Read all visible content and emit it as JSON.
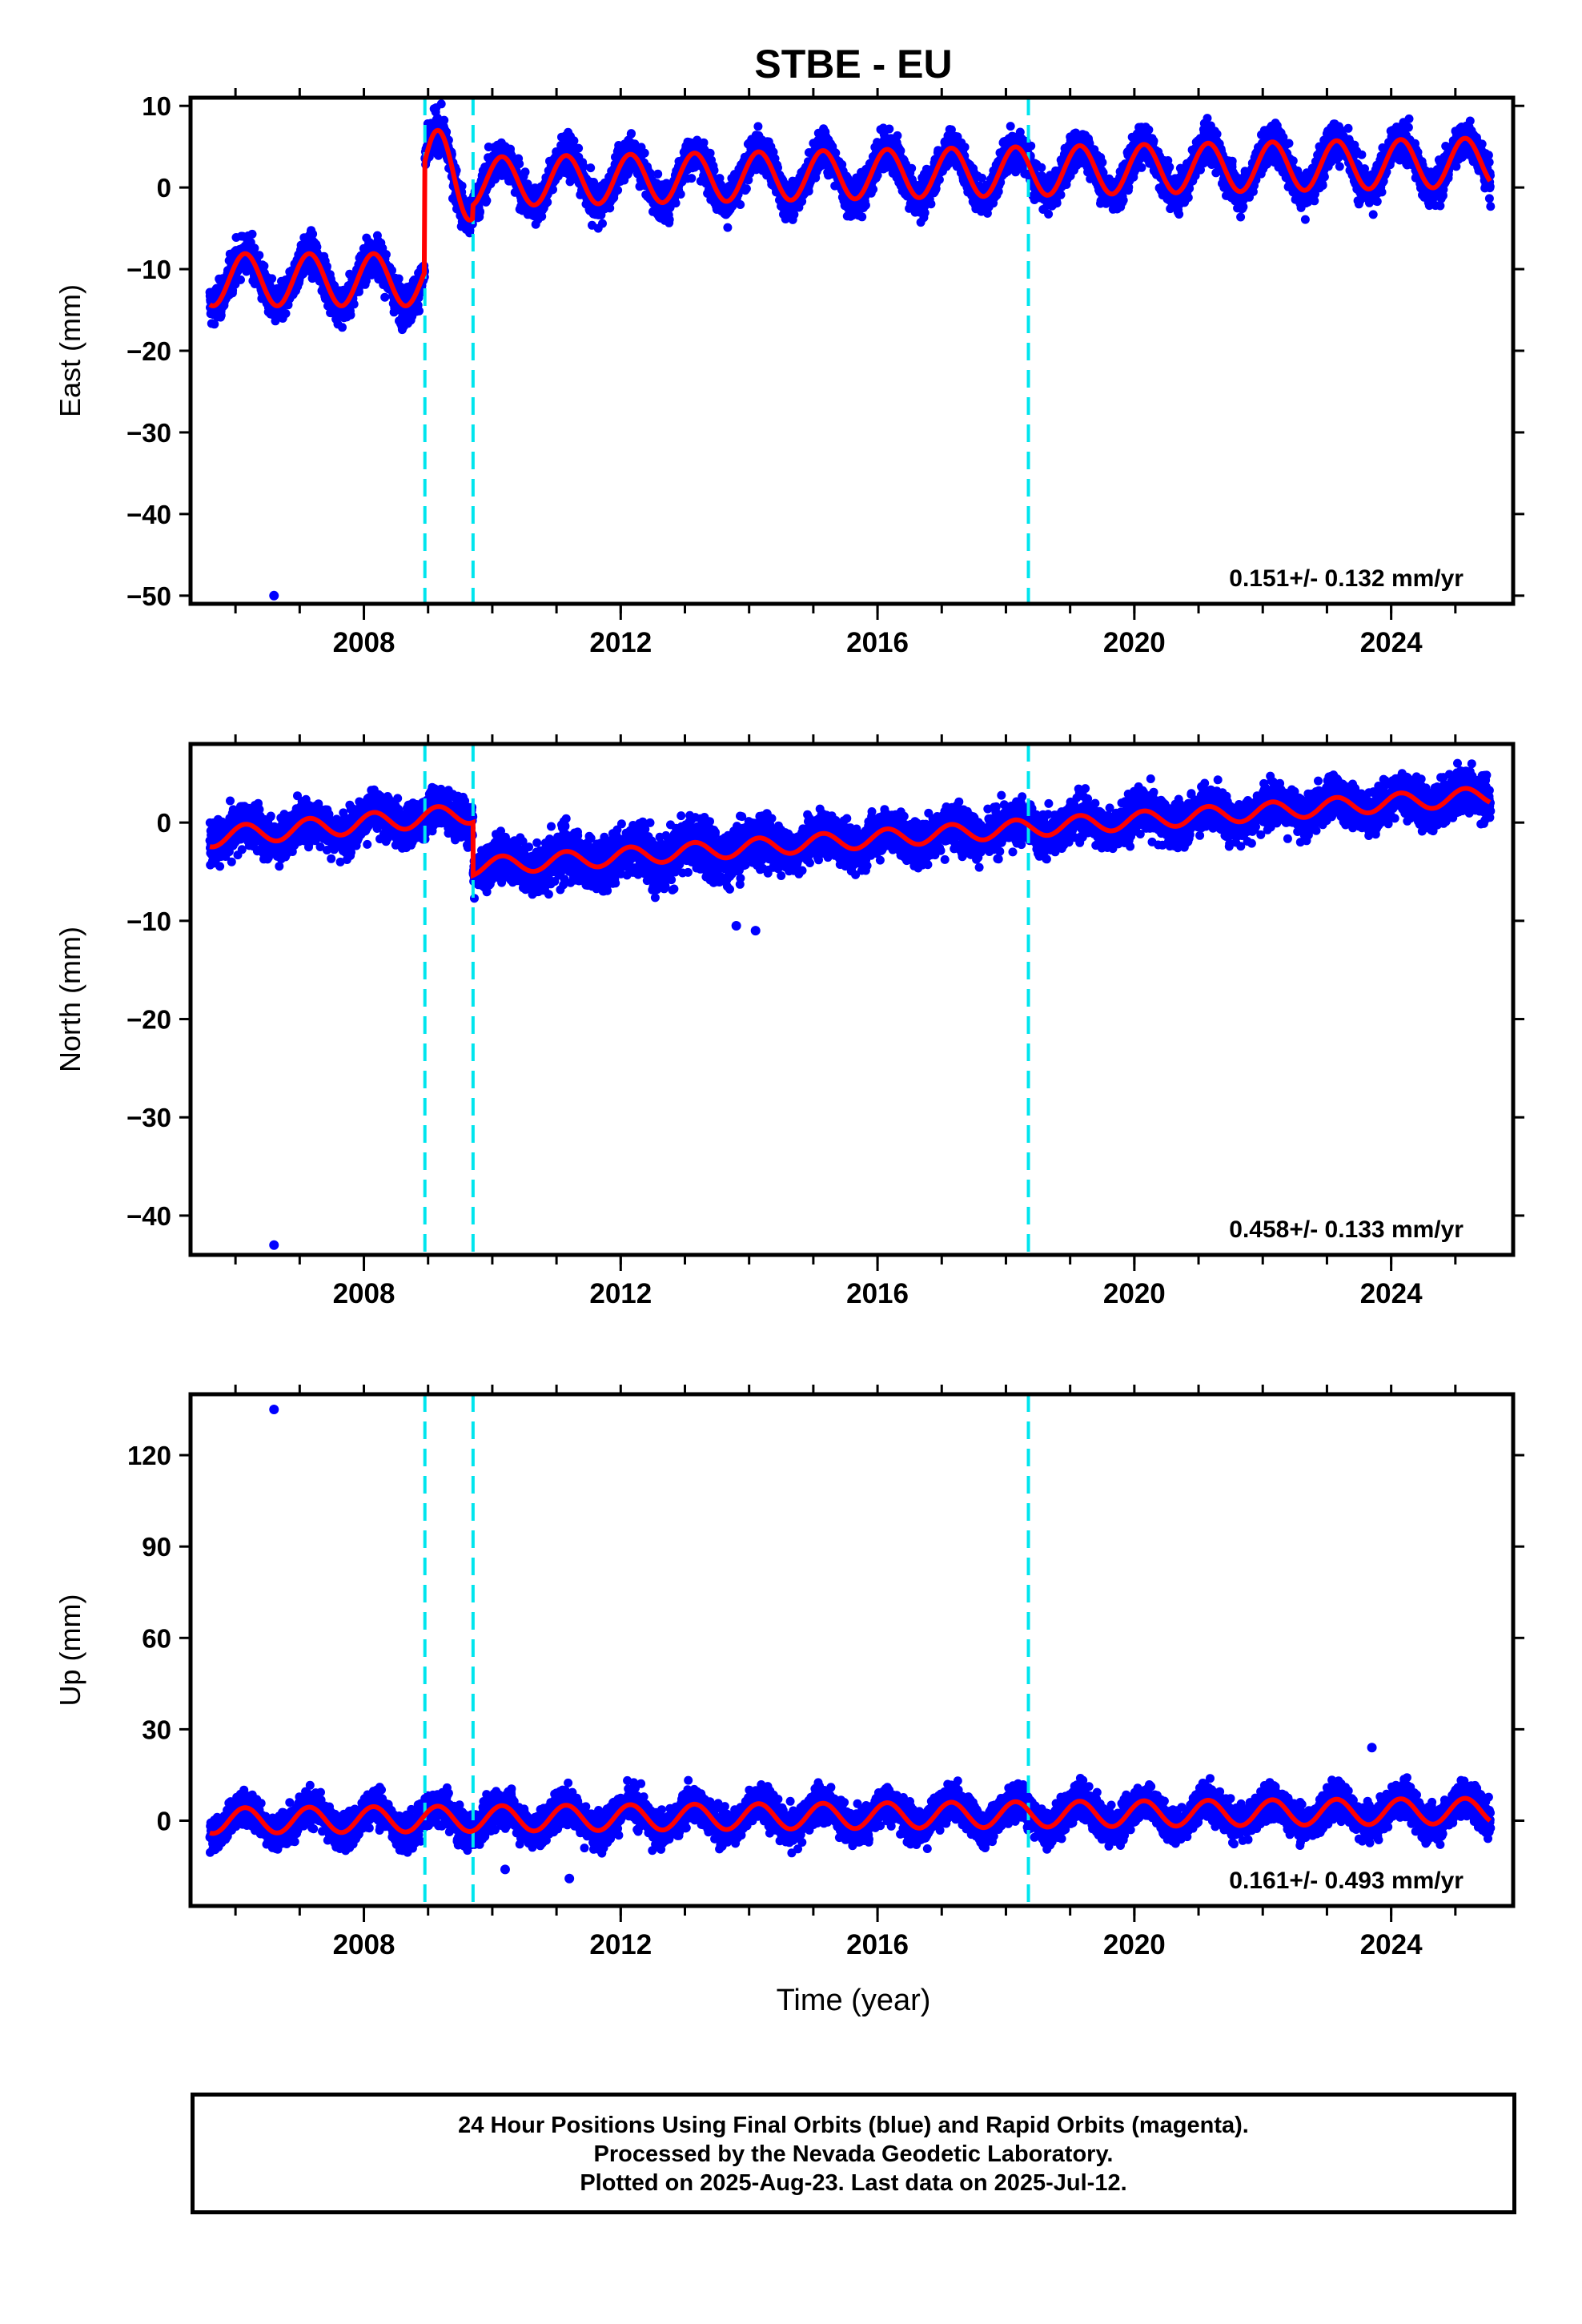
{
  "title": "STBE - EU",
  "xlabel": "Time (year)",
  "x_ticks": [
    "2008",
    "2012",
    "2016",
    "2020",
    "2024"
  ],
  "footer": [
    "24 Hour Positions Using Final Orbits (blue) and Rapid Orbits (magenta).",
    "Processed by the Nevada Geodetic Laboratory.",
    "Plotted on 2025-Aug-23. Last data on 2025-Jul-12."
  ],
  "colors": {
    "points": "#0000ff",
    "model": "#ff0000",
    "steps": "#00e5ee",
    "axis": "#000000"
  },
  "chart_data": [
    {
      "type": "scatter",
      "ylabel": "East (mm)",
      "rate": "0.151+/- 0.132 mm/yr",
      "xlim": [
        2005.3,
        2025.9
      ],
      "ylim": [
        -51,
        11
      ],
      "y_ticks": [
        10,
        0,
        -10,
        -20,
        -30,
        -40,
        -50
      ],
      "step_epochs": [
        2008.95,
        2009.7,
        2018.35
      ],
      "grid": false,
      "model": [
        {
          "x_range": [
            2005.6,
            2008.95
          ],
          "offset": -11.3,
          "amplitude": 3.2,
          "trend": 0
        },
        {
          "x_range": [
            2008.95,
            2009.7
          ],
          "offset": 1.5,
          "amplitude": 5.5,
          "trend": 0
        },
        {
          "x_range": [
            2009.7,
            2025.55
          ],
          "offset": 0.7,
          "amplitude": 3.0,
          "trend": 0.151
        }
      ],
      "scatter_sd": 1.6,
      "outliers": [
        {
          "x": 2006.6,
          "y": -50
        }
      ]
    },
    {
      "type": "scatter",
      "ylabel": "North (mm)",
      "rate": "0.458+/- 0.133 mm/yr",
      "xlim": [
        2005.3,
        2025.9
      ],
      "ylim": [
        -44,
        8
      ],
      "y_ticks": [
        0,
        -10,
        -20,
        -30,
        -40
      ],
      "step_epochs": [
        2008.95,
        2009.7,
        2018.35
      ],
      "grid": false,
      "model": [
        {
          "x_range": [
            2005.6,
            2009.7
          ],
          "offset": -1.5,
          "amplitude": 1.0,
          "trend": 0.6
        },
        {
          "x_range": [
            2009.7,
            2025.55
          ],
          "offset": -4.5,
          "amplitude": 0.9,
          "trend": 0.458
        }
      ],
      "scatter_sd": 1.5,
      "outliers": [
        {
          "x": 2006.6,
          "y": -43
        },
        {
          "x": 2014.1,
          "y": -11
        },
        {
          "x": 2013.8,
          "y": -10.5
        }
      ]
    },
    {
      "type": "scatter",
      "ylabel": "Up (mm)",
      "rate": "0.161+/- 0.493 mm/yr",
      "xlim": [
        2005.3,
        2025.9
      ],
      "ylim": [
        -28,
        140
      ],
      "y_ticks": [
        120,
        90,
        60,
        30,
        0
      ],
      "step_epochs": [
        2008.95,
        2009.7,
        2018.35
      ],
      "grid": false,
      "model": [
        {
          "x_range": [
            2005.6,
            2025.55
          ],
          "offset": 0.0,
          "amplitude": 4.2,
          "trend": 0.161
        }
      ],
      "scatter_sd": 4.0,
      "outliers": [
        {
          "x": 2006.6,
          "y": 135
        },
        {
          "x": 2023.7,
          "y": 24
        },
        {
          "x": 2010.2,
          "y": -16
        },
        {
          "x": 2011.2,
          "y": -19
        }
      ]
    }
  ]
}
